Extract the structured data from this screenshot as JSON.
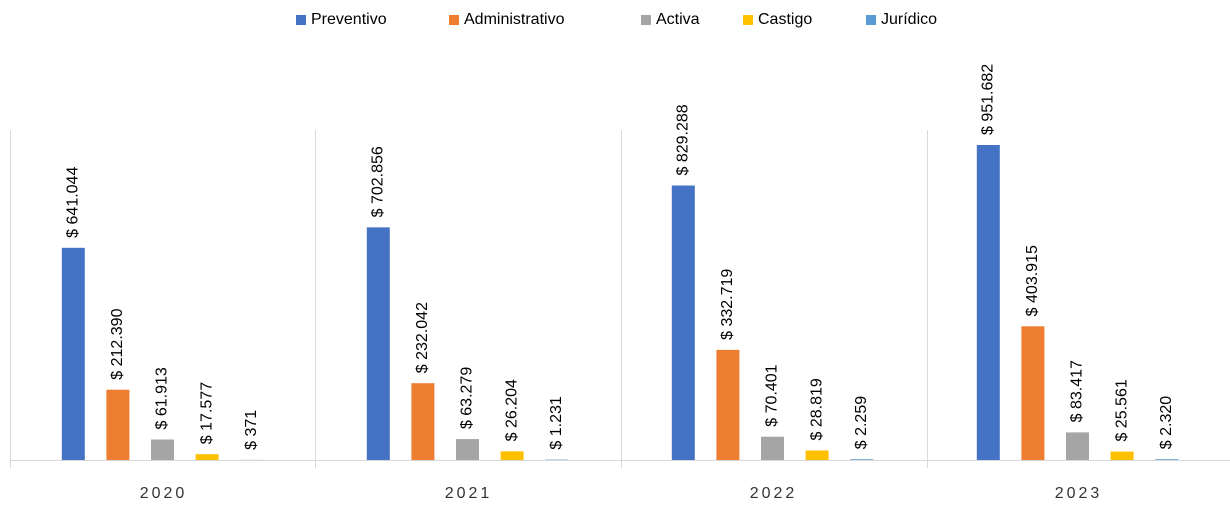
{
  "chart_data": {
    "type": "bar",
    "categories": [
      "2020",
      "2021",
      "2022",
      "2023"
    ],
    "series": [
      {
        "name": "Preventivo",
        "color": "#4472c4",
        "values": [
          641044,
          702856,
          829288,
          951682
        ],
        "value_labels": [
          "$ 641.044",
          "$ 702.856",
          "$ 829.288",
          "$ 951.682"
        ]
      },
      {
        "name": "Administrativo",
        "color": "#ed7d31",
        "values": [
          212390,
          232042,
          332719,
          403915
        ],
        "value_labels": [
          "$ 212.390",
          "$ 232.042",
          "$ 332.719",
          "$ 403.915"
        ]
      },
      {
        "name": "Activa",
        "color": "#a5a5a5",
        "values": [
          61913,
          63279,
          70401,
          83417
        ],
        "value_labels": [
          "$ 61.913",
          "$ 63.279",
          "$ 70.401",
          "$ 83.417"
        ]
      },
      {
        "name": "Castigo",
        "color": "#ffc000",
        "values": [
          17577,
          26204,
          28819,
          25561
        ],
        "value_labels": [
          "$ 17.577",
          "$ 26.204",
          "$ 28.819",
          "$ 25.561"
        ]
      },
      {
        "name": "Jurídico",
        "color": "#5b9bd5",
        "values": [
          371,
          1231,
          2259,
          2320
        ],
        "value_labels": [
          "$ 371",
          "$ 1.231",
          "$ 2.259",
          "$ 2.320"
        ]
      }
    ],
    "legend": "top"
  }
}
